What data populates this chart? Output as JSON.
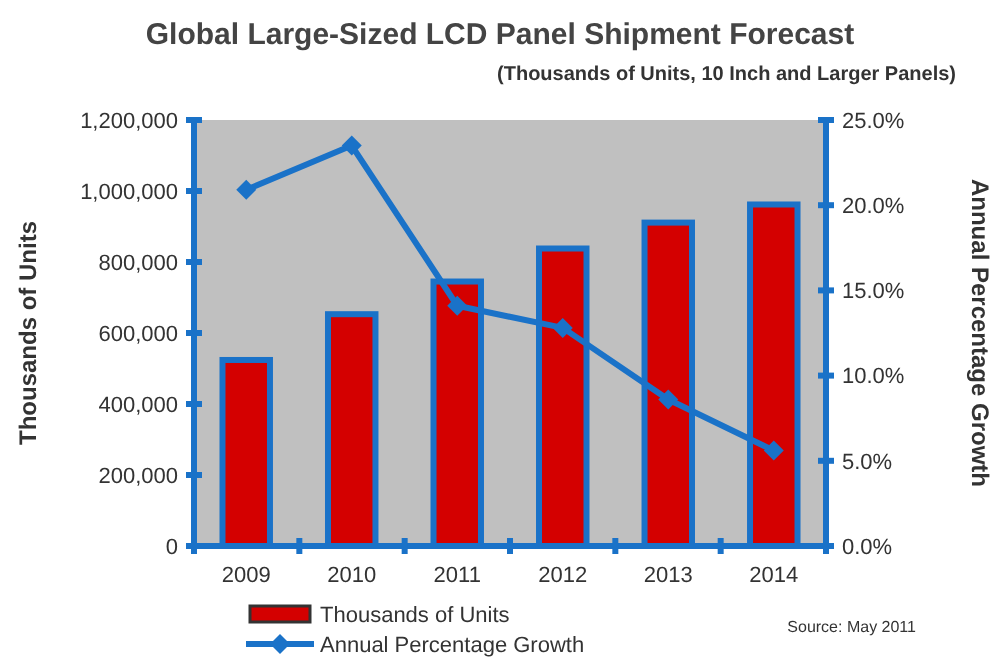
{
  "chart_data": {
    "type": "bar",
    "title": "Global Large-Sized LCD Panel Shipment Forecast",
    "subtitle": "(Thousands of Units, 10 Inch and Larger Panels)",
    "ylabel": "Thousands of Units",
    "y2label": "Annual Percentage Growth",
    "categories": [
      "2009",
      "2010",
      "2011",
      "2012",
      "2013",
      "2014"
    ],
    "series": [
      {
        "name": "Thousands of Units",
        "color": "#d40000",
        "values": [
          524000,
          653000,
          745000,
          838000,
          911000,
          962000
        ]
      },
      {
        "name": "Annual Percentage Growth",
        "type": "line",
        "axis": "y2",
        "color": "#1a72c8",
        "marker": "diamond",
        "values": [
          20.9,
          23.5,
          14.1,
          12.8,
          8.6,
          5.6
        ]
      }
    ],
    "ylim": [
      0,
      1200000
    ],
    "yticks": [
      {
        "value": 0,
        "label": "0"
      },
      {
        "value": 200000,
        "label": "200,000"
      },
      {
        "value": 400000,
        "label": "400,000"
      },
      {
        "value": 600000,
        "label": "600,000"
      },
      {
        "value": 800000,
        "label": "800,000"
      },
      {
        "value": 1000000,
        "label": "1,000,000"
      },
      {
        "value": 1200000,
        "label": "1,200,000"
      }
    ],
    "y2lim": [
      0,
      25
    ],
    "y2ticks": [
      {
        "value": 0,
        "label": "0.0%"
      },
      {
        "value": 5,
        "label": "5.0%"
      },
      {
        "value": 10,
        "label": "10.0%"
      },
      {
        "value": 15,
        "label": "15.0%"
      },
      {
        "value": 20,
        "label": "20.0%"
      },
      {
        "value": 25,
        "label": "25.0%"
      }
    ],
    "legend": "bottom",
    "grid": false,
    "annotations": [
      "Source: May 2011"
    ]
  }
}
